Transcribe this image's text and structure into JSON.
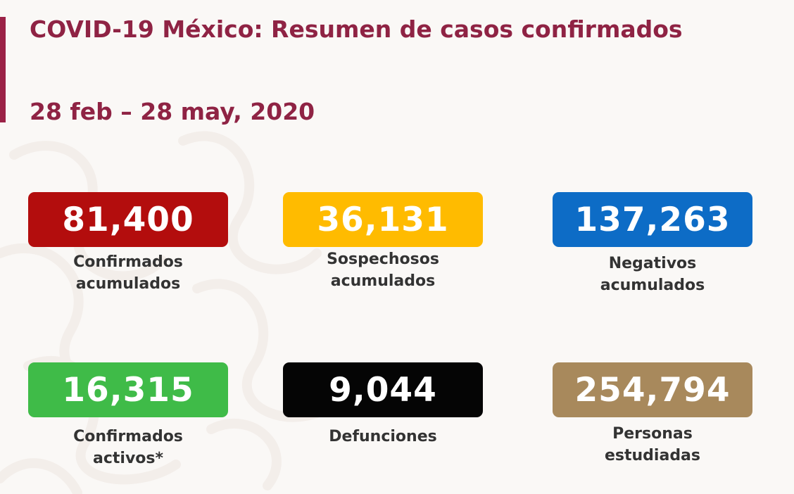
{
  "header": {
    "title": "COVID-19 México: Resumen de casos confirmados",
    "date_range": "28 feb – 28 may, 2020"
  },
  "stats": [
    {
      "value": "81,400",
      "label_line1": "Confirmados",
      "label_line2": "acumulados",
      "color": "#b30d0d"
    },
    {
      "value": "36,131",
      "label_line1": "Sospechosos",
      "label_line2": "acumulados",
      "color": "#ffbb00"
    },
    {
      "value": "137,263",
      "label_line1": "Negativos",
      "label_line2": "acumulados",
      "color": "#0d6cc6"
    },
    {
      "value": "16,315",
      "label_line1": "Confirmados",
      "label_line2": "activos*",
      "color": "#3fbb48"
    },
    {
      "value": "9,044",
      "label_line1": "Defunciones",
      "label_line2": "",
      "color": "#050505"
    },
    {
      "value": "254,794",
      "label_line1": "Personas",
      "label_line2": "estudiadas",
      "color": "#a8895c"
    }
  ],
  "theme": {
    "accent": "#9b2247",
    "title_color": "#8f2344"
  }
}
